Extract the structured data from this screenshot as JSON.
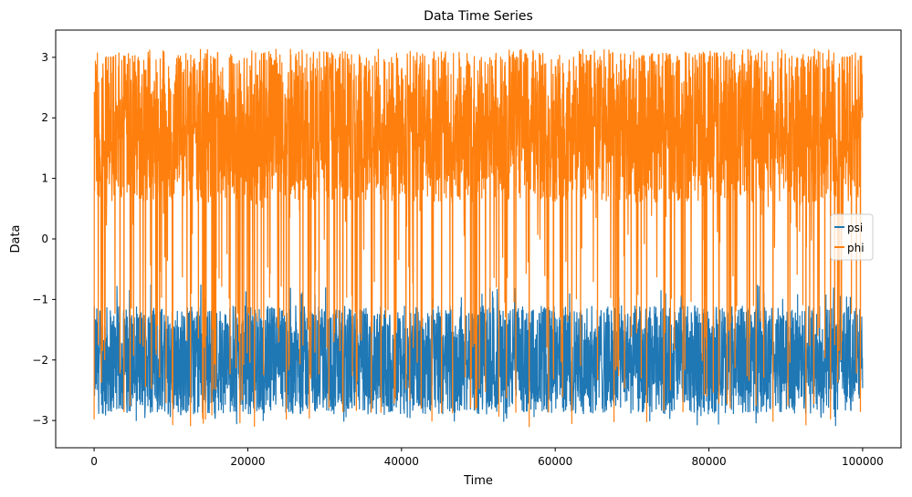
{
  "chart_data": {
    "type": "line",
    "title": "Data Time Series",
    "xlabel": "Time",
    "ylabel": "Data",
    "xlim": [
      -5000,
      105000
    ],
    "ylim": [
      -3.45,
      3.45
    ],
    "xticks": [
      0,
      20000,
      40000,
      60000,
      80000,
      100000
    ],
    "xtick_labels": [
      "0",
      "20000",
      "40000",
      "60000",
      "80000",
      "100000"
    ],
    "yticks": [
      -3,
      -2,
      -1,
      0,
      1,
      2,
      3
    ],
    "ytick_labels": [
      "−3",
      "−2",
      "−1",
      "0",
      "1",
      "2",
      "3"
    ],
    "grid": false,
    "legend_position": "center-right",
    "series": [
      {
        "name": "psi",
        "color": "#1f77b4",
        "x_range": [
          0,
          100000
        ],
        "typical_range": [
          -2.9,
          -1.1
        ],
        "extremes": [
          -3.1,
          -0.75
        ]
      },
      {
        "name": "phi",
        "color": "#ff7f0e",
        "x_range": [
          0,
          100000
        ],
        "typical_range": [
          0.6,
          3.1
        ],
        "excursion_range": [
          -3.14,
          -0.9
        ],
        "extremes": [
          -3.14,
          3.14
        ]
      }
    ]
  }
}
